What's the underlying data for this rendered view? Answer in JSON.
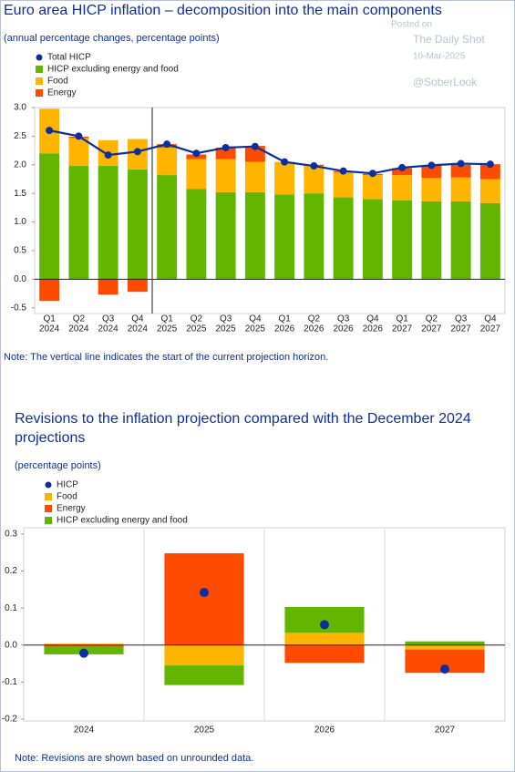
{
  "watermark": {
    "posted": "Posted on",
    "source": "The Daily Shot",
    "date": "10-Mar-2025",
    "handle": "@SoberLook"
  },
  "chart_data": [
    {
      "type": "bar",
      "stacked": true,
      "title": "Euro area HICP inflation – decomposition into the main components",
      "subtitle": "(annual percentage changes, percentage points)",
      "note": "Note: The vertical line indicates the start of the current projection horizon.",
      "categories": [
        {
          "quarter": "Q1",
          "year": "2024"
        },
        {
          "quarter": "Q2",
          "year": "2024"
        },
        {
          "quarter": "Q3",
          "year": "2024"
        },
        {
          "quarter": "Q4",
          "year": "2024"
        },
        {
          "quarter": "Q1",
          "year": "2025"
        },
        {
          "quarter": "Q2",
          "year": "2025"
        },
        {
          "quarter": "Q3",
          "year": "2025"
        },
        {
          "quarter": "Q4",
          "year": "2025"
        },
        {
          "quarter": "Q1",
          "year": "2026"
        },
        {
          "quarter": "Q2",
          "year": "2026"
        },
        {
          "quarter": "Q3",
          "year": "2026"
        },
        {
          "quarter": "Q4",
          "year": "2026"
        },
        {
          "quarter": "Q1",
          "year": "2027"
        },
        {
          "quarter": "Q2",
          "year": "2027"
        },
        {
          "quarter": "Q3",
          "year": "2027"
        },
        {
          "quarter": "Q4",
          "year": "2027"
        }
      ],
      "series": [
        {
          "name": "Total HICP",
          "type": "line",
          "color": "#0d2f9e",
          "values": [
            2.6,
            2.5,
            2.17,
            2.23,
            2.36,
            2.2,
            2.3,
            2.32,
            2.05,
            1.98,
            1.89,
            1.85,
            1.95,
            1.99,
            2.02,
            2.01
          ]
        },
        {
          "name": "HICP excluding energy and food",
          "color": "#62b600",
          "values": [
            2.2,
            1.98,
            1.98,
            1.92,
            1.82,
            1.58,
            1.52,
            1.52,
            1.48,
            1.5,
            1.43,
            1.4,
            1.38,
            1.36,
            1.36,
            1.33
          ]
        },
        {
          "name": "Food",
          "color": "#ffb400",
          "values": [
            0.78,
            0.49,
            0.45,
            0.53,
            0.48,
            0.52,
            0.58,
            0.53,
            0.57,
            0.48,
            0.44,
            0.42,
            0.44,
            0.41,
            0.42,
            0.42
          ]
        },
        {
          "name": "Energy",
          "color": "#ff4b00",
          "values": [
            -0.38,
            0.02,
            -0.27,
            -0.22,
            0.06,
            0.08,
            0.2,
            0.28,
            0.0,
            0.02,
            0.02,
            0.02,
            0.12,
            0.22,
            0.22,
            0.26
          ]
        }
      ],
      "ylim": [
        -0.6,
        3.0
      ],
      "yticks": [
        {
          "value": 3,
          "label": "3.0"
        },
        2.5,
        {
          "value": 2,
          "label": "2.0"
        },
        1.5,
        {
          "value": 1,
          "label": "1.0"
        },
        0.5,
        {
          "value": 0,
          "label": "0.0"
        },
        -0.5
      ],
      "projection_start": 4,
      "legend": "top-left"
    },
    {
      "type": "bar",
      "stacked": true,
      "title": "Revisions to the inflation projection compared with the December 2024 projections",
      "subtitle": "(percentage points)",
      "note": "Note: Revisions are shown based on unrounded data.",
      "categories": [
        "2024",
        "2025",
        "2026",
        "2027"
      ],
      "series": [
        {
          "name": "HICP",
          "type": "dot",
          "color": "#0d2f9e",
          "values": [
            -0.022,
            0.142,
            0.055,
            -0.065
          ]
        },
        {
          "name": "Food",
          "color": "#ffb400",
          "values": [
            0.004,
            -0.055,
            0.033,
            -0.012
          ]
        },
        {
          "name": "Energy",
          "color": "#ff4b00",
          "values": [
            -0.003,
            0.248,
            -0.048,
            -0.063
          ]
        },
        {
          "name": "HICP excluding energy and food",
          "color": "#62b600",
          "values": [
            -0.022,
            -0.053,
            0.07,
            0.01
          ]
        }
      ],
      "ylim": [
        -0.205,
        0.317
      ],
      "yticks": [
        0.3,
        0.2,
        0.1,
        {
          "value": 0,
          "label": "0.0"
        },
        -0.1,
        -0.2
      ],
      "legend": "top-left"
    }
  ]
}
